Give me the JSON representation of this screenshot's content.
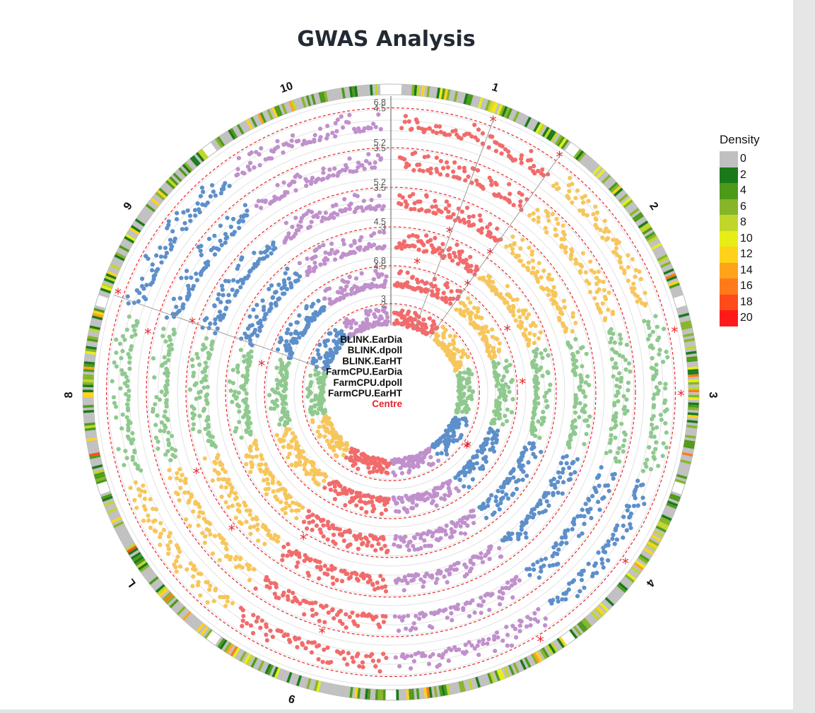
{
  "chart_data": {
    "type": "scatter",
    "title": "GWAS Analysis",
    "chromosomes": [
      "1",
      "2",
      "3",
      "4",
      "5",
      "6",
      "7",
      "8",
      "9",
      "10"
    ],
    "chromosome_label_text": [
      "1",
      "2",
      "3",
      "4",
      "",
      "9",
      "L",
      "8",
      "9",
      "10"
    ],
    "chromosome_colors": [
      "#f26b6b",
      "#f7c65b",
      "#8fc98f",
      "#5d8fca",
      "#c090cc",
      "#f26b6b",
      "#f7c65b",
      "#8fc98f",
      "#5d8fca",
      "#c090cc"
    ],
    "tracks": [
      {
        "name": "BLINK.EarDia",
        "y_ticks": [
          "6.8",
          "4.5"
        ],
        "threshold": 4.5
      },
      {
        "name": "BLINK.dpoll",
        "y_ticks": [
          "5.2",
          "3.5"
        ],
        "threshold": 3.5
      },
      {
        "name": "BLINK.EarHT",
        "y_ticks": [
          "5.2",
          "3.5"
        ],
        "threshold": 3.5
      },
      {
        "name": "FarmCPU.EarDia",
        "y_ticks": [
          "4.5",
          "3"
        ],
        "threshold": 3
      },
      {
        "name": "FarmCPU.dpoll",
        "y_ticks": [
          "6.8",
          "4.5"
        ],
        "threshold": 4.5
      },
      {
        "name": "FarmCPU.EarHT",
        "y_ticks": [
          "3",
          "2"
        ],
        "threshold": 2
      }
    ],
    "centre_label": "Centre",
    "threshold_color": "#e8242a",
    "density_legend": {
      "title": "Density",
      "values": [
        "0",
        "2",
        "4",
        "6",
        "8",
        "10",
        "12",
        "14",
        "16",
        "18",
        "20"
      ],
      "colors": [
        "#c0c0c0",
        "#1a7a1a",
        "#4d9a1a",
        "#86b52a",
        "#c0d62a",
        "#e6ee16",
        "#ffd21a",
        "#ffa31a",
        "#ff7a1a",
        "#ff4a1a",
        "#ff1a1a"
      ]
    }
  }
}
